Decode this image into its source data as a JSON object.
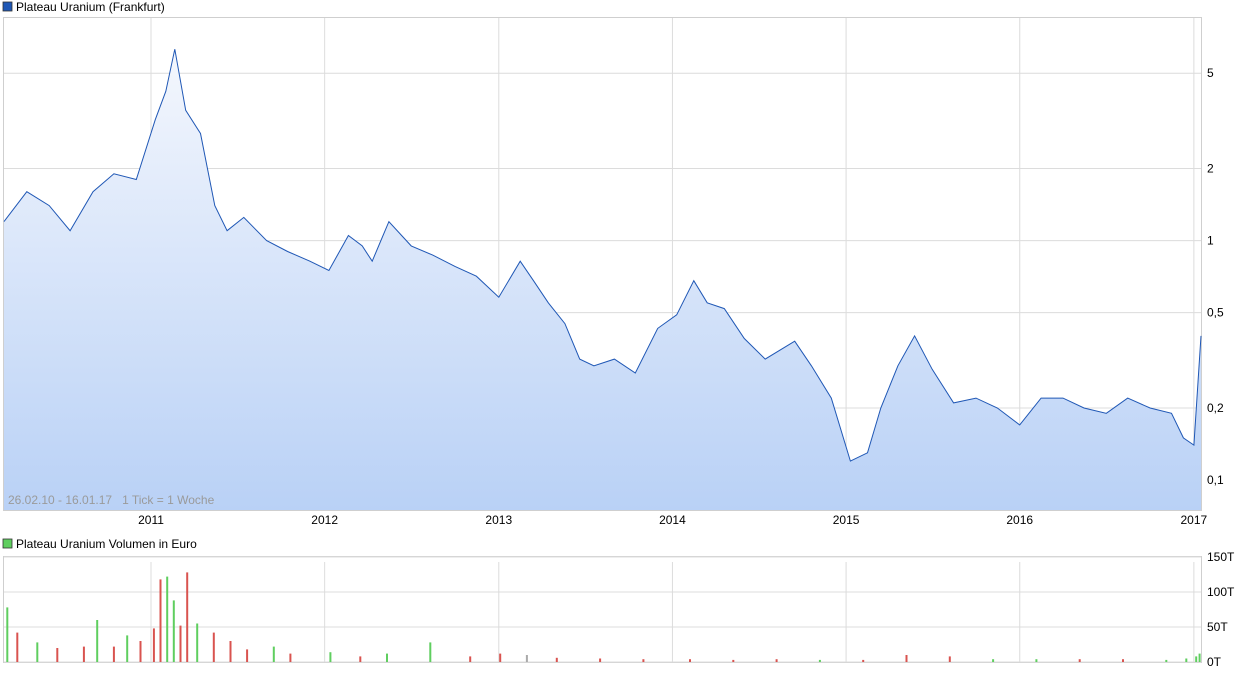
{
  "colors": {
    "price_line": "#1f57b5",
    "price_fill_top": "#f4f7fd",
    "price_fill_bottom": "#b9d1f6",
    "volume_up": "#5fce5f",
    "volume_down": "#d9534f",
    "volume_neutral": "#aaaaaa",
    "grid": "#dcdcdc",
    "legend_price_swatch": "#1f57b5",
    "legend_volume_swatch": "#5fce5f"
  },
  "chart_data": [
    {
      "type": "area",
      "title": "Plateau Uranium (Frankfurt)",
      "info_text": "26.02.10 - 16.01.17   1 Tick = 1 Woche",
      "x_ticks": [
        "2011",
        "2012",
        "2013",
        "2014",
        "2015",
        "2016",
        "2017"
      ],
      "y_scale": "log",
      "y_ticks": [
        {
          "label": "5",
          "value": 5
        },
        {
          "label": "2",
          "value": 2
        },
        {
          "label": "1",
          "value": 1
        },
        {
          "label": "0,5",
          "value": 0.5
        },
        {
          "label": "0,2",
          "value": 0.2
        },
        {
          "label": "0,1",
          "value": 0.1
        }
      ],
      "ylim": [
        0.075,
        8.5
      ],
      "series": [
        {
          "x": [
            "2010-02-26",
            "2010-04-15",
            "2010-06-01",
            "2010-07-15",
            "2010-09-01",
            "2010-10-15",
            "2010-12-01",
            "2011-01-10",
            "2011-02-01",
            "2011-02-20",
            "2011-03-15",
            "2011-04-15",
            "2011-05-15",
            "2011-06-10",
            "2011-07-15",
            "2011-09-01",
            "2011-10-15",
            "2011-12-01",
            "2012-01-10",
            "2012-02-20",
            "2012-03-20",
            "2012-04-10",
            "2012-05-15",
            "2012-07-01",
            "2012-08-15",
            "2012-10-01",
            "2012-11-15",
            "2013-01-01",
            "2013-02-15",
            "2013-03-15",
            "2013-04-15",
            "2013-05-20",
            "2013-06-20",
            "2013-07-20",
            "2013-09-01",
            "2013-10-15",
            "2013-12-01",
            "2014-01-10",
            "2014-02-15",
            "2014-03-15",
            "2014-04-20",
            "2014-06-01",
            "2014-07-15",
            "2014-09-15",
            "2014-10-20",
            "2014-12-01",
            "2015-01-10",
            "2015-02-15",
            "2015-03-15",
            "2015-04-20",
            "2015-05-25",
            "2015-07-01",
            "2015-08-15",
            "2015-10-01",
            "2015-11-15",
            "2016-01-01",
            "2016-02-15",
            "2016-04-01",
            "2016-05-15",
            "2016-07-01",
            "2016-08-15",
            "2016-10-01",
            "2016-11-15",
            "2016-12-10",
            "2017-01-01",
            "2017-01-16"
          ],
          "values": [
            1.2,
            1.6,
            1.4,
            1.1,
            1.6,
            1.9,
            1.8,
            3.2,
            4.2,
            6.3,
            3.5,
            2.8,
            1.4,
            1.1,
            1.25,
            1.0,
            0.9,
            0.82,
            0.75,
            1.05,
            0.95,
            0.82,
            1.2,
            0.95,
            0.87,
            0.78,
            0.71,
            0.58,
            0.82,
            0.68,
            0.55,
            0.45,
            0.32,
            0.3,
            0.32,
            0.28,
            0.43,
            0.49,
            0.68,
            0.55,
            0.52,
            0.39,
            0.32,
            0.38,
            0.3,
            0.22,
            0.12,
            0.13,
            0.2,
            0.3,
            0.4,
            0.29,
            0.21,
            0.22,
            0.2,
            0.17,
            0.22,
            0.22,
            0.2,
            0.19,
            0.22,
            0.2,
            0.19,
            0.15,
            0.14,
            0.4
          ]
        }
      ]
    },
    {
      "type": "bar",
      "title": "Plateau Uranium Volumen in Euro",
      "x_ticks": [
        "2011",
        "2012",
        "2013",
        "2014",
        "2015",
        "2016",
        "2017"
      ],
      "y_ticks": [
        "150T",
        "100T",
        "50T",
        "0T"
      ],
      "ylim": [
        0,
        150
      ],
      "series": [
        {
          "x": [
            "2010-03-05",
            "2010-03-26",
            "2010-05-07",
            "2010-06-18",
            "2010-08-13",
            "2010-09-10",
            "2010-10-15",
            "2010-11-12",
            "2010-12-10",
            "2011-01-07",
            "2011-01-21",
            "2011-02-04",
            "2011-02-18",
            "2011-03-04",
            "2011-03-18",
            "2011-04-08",
            "2011-05-13",
            "2011-06-17",
            "2011-07-22",
            "2011-09-16",
            "2011-10-21",
            "2012-01-13",
            "2012-03-16",
            "2012-05-11",
            "2012-08-10",
            "2012-11-02",
            "2013-01-04",
            "2013-03-01",
            "2013-05-03",
            "2013-08-02",
            "2013-11-01",
            "2014-02-07",
            "2014-05-09",
            "2014-08-08",
            "2014-11-07",
            "2015-02-06",
            "2015-05-08",
            "2015-08-07",
            "2015-11-06",
            "2016-02-05",
            "2016-05-06",
            "2016-08-05",
            "2016-11-04",
            "2016-12-16",
            "2017-01-06",
            "2017-01-13"
          ],
          "values": [
            78,
            42,
            28,
            20,
            22,
            60,
            22,
            38,
            30,
            48,
            118,
            122,
            88,
            52,
            128,
            55,
            42,
            30,
            18,
            22,
            12,
            14,
            8,
            12,
            28,
            8,
            12,
            10,
            6,
            5,
            4,
            4,
            3,
            4,
            3,
            3,
            10,
            8,
            4,
            4,
            4,
            4,
            3,
            5,
            8,
            12
          ],
          "direction": [
            "up",
            "down",
            "up",
            "down",
            "down",
            "up",
            "down",
            "up",
            "down",
            "down",
            "down",
            "up",
            "up",
            "down",
            "down",
            "up",
            "down",
            "down",
            "down",
            "up",
            "down",
            "up",
            "down",
            "up",
            "up",
            "down",
            "down",
            "neutral",
            "down",
            "down",
            "down",
            "down",
            "down",
            "down",
            "up",
            "down",
            "down",
            "down",
            "up",
            "up",
            "down",
            "down",
            "up",
            "up",
            "up",
            "up"
          ]
        }
      ]
    }
  ]
}
